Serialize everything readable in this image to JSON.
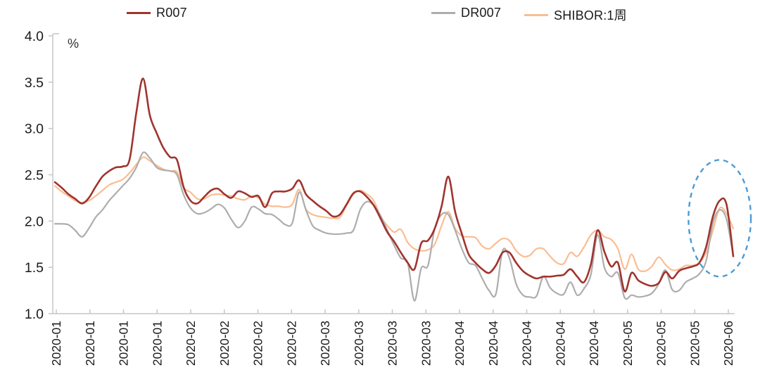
{
  "chart_data": {
    "type": "line",
    "title": "",
    "unit_label": "%",
    "ylim": [
      1.0,
      4.0
    ],
    "y_ticks": [
      "4.0",
      "3.5",
      "3.0",
      "2.5",
      "2.0",
      "1.5",
      "1.0"
    ],
    "y_tick_values": [
      4.0,
      3.5,
      3.0,
      2.5,
      2.0,
      1.5,
      1.0
    ],
    "grid": "off",
    "legend_position": "top",
    "x_tick_labels": [
      "2020-01",
      "2020-01",
      "2020-01",
      "2020-01",
      "2020-02",
      "2020-02",
      "2020-02",
      "2020-02",
      "2020-03",
      "2020-03",
      "2020-03",
      "2020-03",
      "2020-04",
      "2020-04",
      "2020-04",
      "2020-04",
      "2020-04",
      "2020-05",
      "2020-05",
      "2020-05",
      "2020-06"
    ],
    "series": [
      {
        "name": "R007",
        "color": "#A0342E",
        "width": 2.6,
        "values": [
          2.42,
          2.36,
          2.29,
          2.24,
          2.19,
          2.25,
          2.37,
          2.48,
          2.54,
          2.58,
          2.59,
          2.66,
          3.17,
          3.54,
          3.14,
          2.95,
          2.79,
          2.69,
          2.66,
          2.36,
          2.22,
          2.19,
          2.26,
          2.33,
          2.35,
          2.29,
          2.25,
          2.32,
          2.3,
          2.26,
          2.27,
          2.15,
          2.3,
          2.32,
          2.32,
          2.35,
          2.44,
          2.29,
          2.22,
          2.16,
          2.11,
          2.05,
          2.07,
          2.18,
          2.3,
          2.32,
          2.26,
          2.17,
          2.03,
          1.88,
          1.78,
          1.66,
          1.55,
          1.48,
          1.76,
          1.79,
          1.92,
          2.16,
          2.48,
          2.1,
          1.86,
          1.64,
          1.55,
          1.48,
          1.44,
          1.52,
          1.66,
          1.66,
          1.55,
          1.46,
          1.41,
          1.38,
          1.4,
          1.4,
          1.41,
          1.42,
          1.48,
          1.4,
          1.34,
          1.53,
          1.9,
          1.67,
          1.51,
          1.55,
          1.24,
          1.44,
          1.36,
          1.32,
          1.3,
          1.33,
          1.45,
          1.38,
          1.46,
          1.49,
          1.51,
          1.55,
          1.72,
          2.05,
          2.22,
          2.18,
          1.62
        ]
      },
      {
        "name": "DR007",
        "color": "#ADADAD",
        "width": 2.2,
        "values": [
          1.97,
          1.97,
          1.96,
          1.9,
          1.83,
          1.92,
          2.04,
          2.12,
          2.22,
          2.3,
          2.38,
          2.46,
          2.58,
          2.74,
          2.68,
          2.58,
          2.55,
          2.54,
          2.5,
          2.28,
          2.14,
          2.08,
          2.09,
          2.13,
          2.18,
          2.14,
          2.02,
          1.93,
          2.0,
          2.15,
          2.13,
          2.08,
          2.07,
          2.02,
          1.96,
          1.98,
          2.31,
          2.12,
          1.95,
          1.9,
          1.87,
          1.86,
          1.86,
          1.87,
          1.9,
          2.12,
          2.21,
          2.17,
          2.06,
          1.9,
          1.74,
          1.6,
          1.55,
          1.14,
          1.49,
          1.52,
          1.92,
          2.07,
          2.07,
          1.9,
          1.7,
          1.55,
          1.52,
          1.38,
          1.25,
          1.21,
          1.68,
          1.6,
          1.32,
          1.2,
          1.18,
          1.19,
          1.4,
          1.28,
          1.22,
          1.21,
          1.34,
          1.2,
          1.27,
          1.42,
          1.85,
          1.5,
          1.4,
          1.44,
          1.17,
          1.2,
          1.18,
          1.19,
          1.22,
          1.32,
          1.47,
          1.26,
          1.25,
          1.34,
          1.38,
          1.43,
          1.57,
          1.98,
          2.12,
          2.02,
          1.62
        ]
      },
      {
        "name": "SHIBOR:1周",
        "color": "#FABD92",
        "width": 2.2,
        "values": [
          2.38,
          2.32,
          2.27,
          2.22,
          2.2,
          2.22,
          2.27,
          2.33,
          2.39,
          2.42,
          2.45,
          2.52,
          2.61,
          2.69,
          2.65,
          2.6,
          2.56,
          2.54,
          2.53,
          2.36,
          2.31,
          2.24,
          2.24,
          2.28,
          2.29,
          2.28,
          2.27,
          2.24,
          2.23,
          2.27,
          2.25,
          2.18,
          2.16,
          2.16,
          2.15,
          2.18,
          2.34,
          2.13,
          2.07,
          2.05,
          2.04,
          2.03,
          2.04,
          2.17,
          2.29,
          2.33,
          2.29,
          2.22,
          2.05,
          1.95,
          1.88,
          1.91,
          1.77,
          1.7,
          1.68,
          1.69,
          1.75,
          1.95,
          2.1,
          1.92,
          1.84,
          1.83,
          1.82,
          1.73,
          1.7,
          1.76,
          1.81,
          1.79,
          1.68,
          1.62,
          1.63,
          1.7,
          1.7,
          1.62,
          1.55,
          1.54,
          1.66,
          1.62,
          1.72,
          1.85,
          1.9,
          1.83,
          1.8,
          1.7,
          1.48,
          1.64,
          1.48,
          1.46,
          1.51,
          1.61,
          1.53,
          1.47,
          1.48,
          1.52,
          1.52,
          1.55,
          1.66,
          1.9,
          2.14,
          2.08,
          1.92
        ]
      }
    ],
    "annotation": {
      "shape": "dashed-ellipse",
      "color": "#4C9BD6",
      "center_index": 98,
      "center_value": 2.03,
      "rx_points": 4.6,
      "ry_percent": 0.63
    },
    "colors": {
      "axis": "#C6C6C6",
      "tick_text": "#1a1a1a",
      "background": "#ffffff"
    }
  }
}
